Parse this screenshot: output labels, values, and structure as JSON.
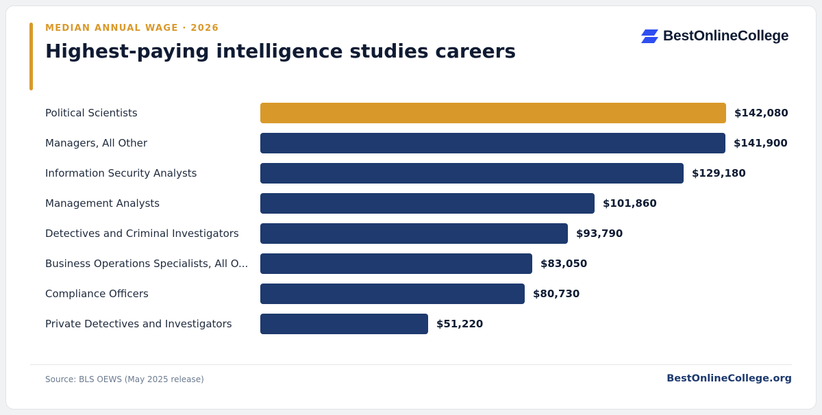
{
  "header": {
    "eyebrow": "MEDIAN ANNUAL WAGE · 2026",
    "title": "Highest-paying intelligence studies careers"
  },
  "brand": {
    "logo_text": "BestOnlineCollege",
    "logo_icon": "stacked-parallelogram-icon",
    "logo_color": "#2f4ff0"
  },
  "footer": {
    "source": "Source: BLS OEWS (May 2025 release)",
    "site": "BestOnlineCollege.org"
  },
  "colors": {
    "highlight": "#d9992a",
    "bar": "#1e3a6e",
    "label_text": "#1f2a3d",
    "value_text": "#0f1b33"
  },
  "chart_data": {
    "type": "bar",
    "orientation": "horizontal",
    "title": "Highest-paying intelligence studies careers",
    "categories": [
      "Political Scientists",
      "Managers, All Other",
      "Information Security Analysts",
      "Management Analysts",
      "Detectives and Criminal Investigators",
      "Business Operations Specialists, All O...",
      "Compliance Officers",
      "Private Detectives and Investigators"
    ],
    "values": [
      142080,
      141900,
      129180,
      101860,
      93790,
      83050,
      80730,
      51220
    ],
    "value_labels": [
      "$142,080",
      "$141,900",
      "$129,180",
      "$101,860",
      "$93,790",
      "$83,050",
      "$80,730",
      "$51,220"
    ],
    "highlight_index": 0,
    "xlim": [
      0,
      142080
    ],
    "grid": false,
    "legend": "none"
  }
}
